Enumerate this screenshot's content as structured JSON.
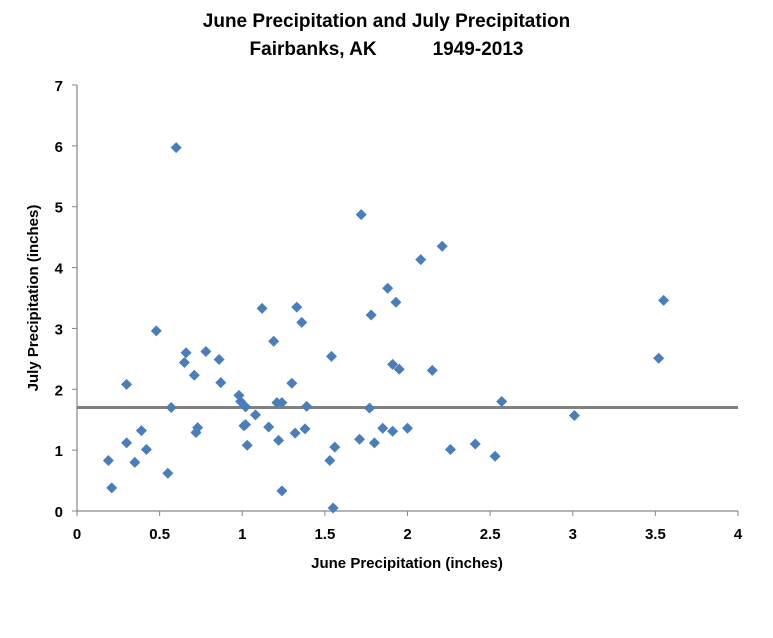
{
  "chart_data": {
    "type": "scatter",
    "title_line1": "June Precipitation and July Precipitation",
    "title_location": "Fairbanks, AK",
    "title_years": "1949-2013",
    "xlabel": "June Precipitation (inches)",
    "ylabel": "July Precipitation (inches)",
    "xlim": [
      0,
      4
    ],
    "ylim": [
      0,
      7
    ],
    "xticks": [
      "0",
      "0.5",
      "1",
      "1.5",
      "2",
      "2.5",
      "3",
      "3.5",
      "4"
    ],
    "yticks": [
      "0",
      "1",
      "2",
      "3",
      "4",
      "5",
      "6",
      "7"
    ],
    "grid": false,
    "reference_line": {
      "y": 1.7,
      "color": "#808080"
    },
    "marker_color": "#4a7ebb",
    "points": [
      [
        0.19,
        0.83
      ],
      [
        0.21,
        0.38
      ],
      [
        0.3,
        2.08
      ],
      [
        0.3,
        1.12
      ],
      [
        0.35,
        0.8
      ],
      [
        0.39,
        1.32
      ],
      [
        0.42,
        1.01
      ],
      [
        0.48,
        2.96
      ],
      [
        0.55,
        0.62
      ],
      [
        0.57,
        1.7
      ],
      [
        0.6,
        5.97
      ],
      [
        0.65,
        2.44
      ],
      [
        0.66,
        2.6
      ],
      [
        0.71,
        2.23
      ],
      [
        0.72,
        1.29
      ],
      [
        0.73,
        1.37
      ],
      [
        0.78,
        2.62
      ],
      [
        0.86,
        2.49
      ],
      [
        0.87,
        2.11
      ],
      [
        0.98,
        1.9
      ],
      [
        0.99,
        1.8
      ],
      [
        1.01,
        1.4
      ],
      [
        1.02,
        1.71
      ],
      [
        1.02,
        1.42
      ],
      [
        1.03,
        1.08
      ],
      [
        1.08,
        1.58
      ],
      [
        1.12,
        3.33
      ],
      [
        1.16,
        1.38
      ],
      [
        1.19,
        2.79
      ],
      [
        1.21,
        1.78
      ],
      [
        1.22,
        1.16
      ],
      [
        1.24,
        0.33
      ],
      [
        1.24,
        1.78
      ],
      [
        1.3,
        2.1
      ],
      [
        1.32,
        1.28
      ],
      [
        1.33,
        3.35
      ],
      [
        1.36,
        3.1
      ],
      [
        1.38,
        1.35
      ],
      [
        1.39,
        1.72
      ],
      [
        1.53,
        0.83
      ],
      [
        1.54,
        2.54
      ],
      [
        1.55,
        0.05
      ],
      [
        1.56,
        1.05
      ],
      [
        1.71,
        1.18
      ],
      [
        1.72,
        4.87
      ],
      [
        1.77,
        1.69
      ],
      [
        1.78,
        3.22
      ],
      [
        1.8,
        1.12
      ],
      [
        1.85,
        1.36
      ],
      [
        1.88,
        3.66
      ],
      [
        1.91,
        2.41
      ],
      [
        1.91,
        1.31
      ],
      [
        1.93,
        3.43
      ],
      [
        1.95,
        2.33
      ],
      [
        2.0,
        1.36
      ],
      [
        2.08,
        4.13
      ],
      [
        2.15,
        2.31
      ],
      [
        2.21,
        4.35
      ],
      [
        2.26,
        1.01
      ],
      [
        2.41,
        1.1
      ],
      [
        2.53,
        0.9
      ],
      [
        2.57,
        1.8
      ],
      [
        3.01,
        1.57
      ],
      [
        3.52,
        2.51
      ],
      [
        3.55,
        3.46
      ]
    ]
  }
}
